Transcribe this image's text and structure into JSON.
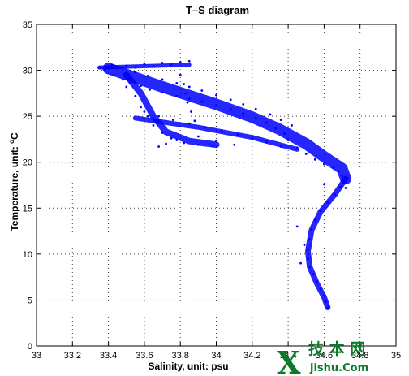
{
  "chart_data": {
    "type": "scatter",
    "title": "T–S diagram",
    "xlabel": "Salinity, unit: psu",
    "ylabel_prefix": "Temperature, unit: ",
    "ylabel_sup": "o",
    "ylabel_suffix": "C",
    "xlim": [
      33,
      35
    ],
    "ylim": [
      0,
      35
    ],
    "xticks": [
      33,
      33.2,
      33.4,
      33.6,
      33.8,
      34,
      34.2,
      34.4,
      34.6,
      34.8,
      35
    ],
    "xtick_labels": [
      "33",
      "33.2",
      "33.4",
      "33.6",
      "33.8",
      "34",
      "34.2",
      "34.4",
      "34.6",
      "34.8",
      "35"
    ],
    "yticks": [
      0,
      5,
      10,
      15,
      20,
      25,
      30,
      35
    ],
    "ytick_labels": [
      "0",
      "5",
      "10",
      "15",
      "20",
      "25",
      "30",
      "35"
    ],
    "grid": true,
    "marker_color": "#0000ff",
    "series": [
      {
        "points": [
          [
            33.35,
            30.3
          ],
          [
            33.38,
            30.1
          ],
          [
            33.42,
            30.6
          ],
          [
            33.45,
            30.2
          ],
          [
            33.5,
            30.5
          ],
          [
            33.55,
            30.3
          ],
          [
            33.6,
            30.7
          ],
          [
            33.65,
            30.4
          ],
          [
            33.7,
            30.8
          ],
          [
            33.75,
            30.6
          ],
          [
            33.8,
            30.9
          ],
          [
            33.85,
            31.0
          ],
          [
            33.43,
            29.5
          ],
          [
            33.48,
            29.0
          ],
          [
            33.52,
            28.6
          ],
          [
            33.58,
            28.3
          ],
          [
            33.63,
            27.9
          ],
          [
            33.7,
            27.6
          ],
          [
            33.78,
            27.2
          ],
          [
            33.85,
            26.9
          ],
          [
            33.92,
            26.6
          ],
          [
            34.0,
            26.2
          ],
          [
            34.08,
            25.8
          ],
          [
            34.15,
            25.3
          ],
          [
            34.22,
            24.8
          ],
          [
            34.28,
            24.3
          ],
          [
            34.33,
            23.7
          ],
          [
            34.38,
            23.1
          ],
          [
            33.55,
            29.8
          ],
          [
            33.62,
            29.4
          ],
          [
            33.7,
            29.0
          ],
          [
            33.78,
            28.6
          ],
          [
            33.85,
            28.2
          ],
          [
            33.92,
            27.8
          ],
          [
            34.0,
            27.3
          ],
          [
            34.08,
            26.8
          ],
          [
            34.15,
            26.3
          ],
          [
            34.22,
            25.8
          ],
          [
            34.3,
            25.2
          ],
          [
            34.36,
            24.6
          ],
          [
            34.42,
            24.0
          ],
          [
            33.5,
            28.2
          ],
          [
            33.55,
            27.2
          ],
          [
            33.58,
            26.0
          ],
          [
            33.62,
            25.0
          ],
          [
            33.65,
            24.0
          ],
          [
            33.7,
            23.2
          ],
          [
            33.75,
            22.6
          ],
          [
            33.82,
            22.1
          ],
          [
            33.9,
            21.9
          ],
          [
            33.98,
            21.8
          ],
          [
            33.6,
            25.5
          ],
          [
            33.68,
            25.0
          ],
          [
            33.76,
            24.6
          ],
          [
            33.85,
            24.2
          ],
          [
            33.94,
            23.8
          ],
          [
            34.03,
            23.4
          ],
          [
            34.12,
            23.0
          ],
          [
            34.2,
            22.6
          ],
          [
            34.28,
            22.2
          ],
          [
            34.36,
            21.7
          ],
          [
            33.8,
            29.5
          ],
          [
            33.82,
            28.5
          ],
          [
            33.83,
            27.5
          ],
          [
            33.84,
            26.5
          ],
          [
            33.86,
            25.5
          ],
          [
            33.88,
            24.5
          ],
          [
            33.72,
            22.0
          ],
          [
            33.68,
            21.7
          ],
          [
            33.78,
            22.4
          ],
          [
            33.9,
            22.8
          ],
          [
            34.0,
            22.3
          ],
          [
            34.1,
            21.9
          ],
          [
            34.4,
            22.4
          ],
          [
            34.45,
            21.6
          ],
          [
            34.5,
            20.9
          ],
          [
            34.55,
            20.3
          ],
          [
            34.6,
            19.8
          ],
          [
            34.65,
            19.4
          ],
          [
            34.68,
            19.0
          ],
          [
            34.7,
            18.5
          ],
          [
            34.7,
            18.0
          ],
          [
            34.69,
            17.3
          ],
          [
            34.66,
            16.5
          ],
          [
            34.62,
            15.6
          ],
          [
            34.58,
            14.7
          ],
          [
            34.55,
            13.7
          ],
          [
            34.53,
            12.7
          ],
          [
            34.52,
            11.6
          ],
          [
            34.51,
            10.5
          ],
          [
            34.51,
            9.5
          ],
          [
            34.52,
            8.6
          ],
          [
            34.54,
            7.8
          ],
          [
            34.56,
            7.0
          ],
          [
            34.58,
            6.2
          ],
          [
            34.6,
            5.5
          ],
          [
            34.61,
            4.8
          ],
          [
            34.62,
            4.2
          ],
          [
            34.45,
            13.0
          ],
          [
            34.49,
            11.0
          ],
          [
            34.47,
            9.0
          ],
          [
            34.6,
            17.6
          ],
          [
            34.72,
            17.2
          ],
          [
            34.73,
            18.3
          ]
        ]
      }
    ]
  },
  "watermark": {
    "big": "X",
    "top": "技 本 网",
    "bottom": "jishu.Com"
  }
}
